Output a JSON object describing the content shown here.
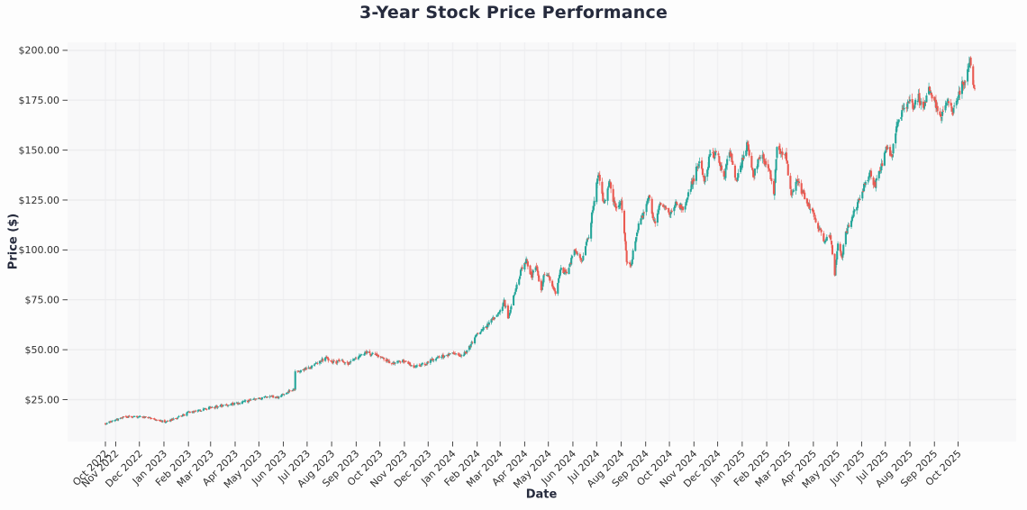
{
  "figure": {
    "title": "3-Year Stock Price Performance"
  },
  "chart_data": {
    "type": "candlestick",
    "title": "3-Year Stock Price Performance",
    "xlabel": "Date",
    "ylabel": "Price ($)",
    "x_start": "2022-10-19",
    "x_end": "2025-10-22",
    "ylim": [
      4,
      204
    ],
    "grid": true,
    "y_ticks": [
      25,
      50,
      75,
      100,
      125,
      150,
      175,
      200
    ],
    "y_tick_labels": [
      "$25.00",
      "$50.00",
      "$75.00",
      "$100.00",
      "$125.00",
      "$150.00",
      "$175.00",
      "$200.00"
    ],
    "x_ticks": [
      {
        "label": "Oct 2022",
        "date": "2022-10-19"
      },
      {
        "label": "Nov 2022",
        "date": "2022-11-01"
      },
      {
        "label": "Dec 2022",
        "date": "2022-12-01"
      },
      {
        "label": "Jan 2023",
        "date": "2023-01-01"
      },
      {
        "label": "Feb 2023",
        "date": "2023-02-01"
      },
      {
        "label": "Mar 2023",
        "date": "2023-03-01"
      },
      {
        "label": "Apr 2023",
        "date": "2023-04-01"
      },
      {
        "label": "May 2023",
        "date": "2023-05-01"
      },
      {
        "label": "Jun 2023",
        "date": "2023-06-01"
      },
      {
        "label": "Jul 2023",
        "date": "2023-07-01"
      },
      {
        "label": "Aug 2023",
        "date": "2023-08-01"
      },
      {
        "label": "Sep 2023",
        "date": "2023-09-01"
      },
      {
        "label": "Oct 2023",
        "date": "2023-10-01"
      },
      {
        "label": "Nov 2023",
        "date": "2023-11-01"
      },
      {
        "label": "Dec 2023",
        "date": "2023-12-01"
      },
      {
        "label": "Jan 2024",
        "date": "2024-01-01"
      },
      {
        "label": "Feb 2024",
        "date": "2024-02-01"
      },
      {
        "label": "Mar 2024",
        "date": "2024-03-01"
      },
      {
        "label": "Apr 2024",
        "date": "2024-04-01"
      },
      {
        "label": "May 2024",
        "date": "2024-05-01"
      },
      {
        "label": "Jun 2024",
        "date": "2024-06-01"
      },
      {
        "label": "Jul 2024",
        "date": "2024-07-01"
      },
      {
        "label": "Aug 2024",
        "date": "2024-08-01"
      },
      {
        "label": "Sep 2024",
        "date": "2024-09-01"
      },
      {
        "label": "Oct 2024",
        "date": "2024-10-01"
      },
      {
        "label": "Nov 2024",
        "date": "2024-11-01"
      },
      {
        "label": "Dec 2024",
        "date": "2024-12-01"
      },
      {
        "label": "Jan 2025",
        "date": "2025-01-01"
      },
      {
        "label": "Feb 2025",
        "date": "2025-02-01"
      },
      {
        "label": "Mar 2025",
        "date": "2025-03-01"
      },
      {
        "label": "Apr 2025",
        "date": "2025-04-01"
      },
      {
        "label": "May 2025",
        "date": "2025-05-01"
      },
      {
        "label": "Jun 2025",
        "date": "2025-06-01"
      },
      {
        "label": "Jul 2025",
        "date": "2025-07-01"
      },
      {
        "label": "Aug 2025",
        "date": "2025-08-01"
      },
      {
        "label": "Sep 2025",
        "date": "2025-09-01"
      },
      {
        "label": "Oct 2025",
        "date": "2025-10-01"
      }
    ],
    "colors": {
      "up": "#26a69a",
      "down": "#ea5a52",
      "grid_h": "#ececee",
      "grid_v": "#f0f0f2",
      "plot_bg": "#f8f8f9",
      "tick_text": "#2e2e2e",
      "title_text": "#262b3d",
      "tick_mark": "#333333"
    },
    "anchors": [
      [
        "2022-10-19",
        13.2
      ],
      [
        "2022-10-26",
        13.8
      ],
      [
        "2022-11-03",
        15.0
      ],
      [
        "2022-11-12",
        16.5
      ],
      [
        "2022-11-21",
        16.2
      ],
      [
        "2022-12-01",
        16.4
      ],
      [
        "2022-12-12",
        16.0
      ],
      [
        "2022-12-22",
        14.8
      ],
      [
        "2023-01-04",
        13.9
      ],
      [
        "2023-01-16",
        15.5
      ],
      [
        "2023-02-01",
        18.5
      ],
      [
        "2023-02-15",
        19.5
      ],
      [
        "2023-03-01",
        21.0
      ],
      [
        "2023-03-20",
        22.3
      ],
      [
        "2023-04-03",
        23.2
      ],
      [
        "2023-04-17",
        24.4
      ],
      [
        "2023-05-01",
        25.5
      ],
      [
        "2023-05-16",
        26.8
      ],
      [
        "2023-05-24",
        26.0
      ],
      [
        "2023-06-01",
        28.0
      ],
      [
        "2023-06-15",
        30.2
      ],
      [
        "2023-06-16",
        38.8
      ],
      [
        "2023-06-26",
        40.0
      ],
      [
        "2023-07-05",
        41.5
      ],
      [
        "2023-07-14",
        43.5
      ],
      [
        "2023-07-25",
        46.0
      ],
      [
        "2023-08-04",
        43.5
      ],
      [
        "2023-08-14",
        44.5
      ],
      [
        "2023-08-22",
        43.0
      ],
      [
        "2023-09-01",
        45.5
      ],
      [
        "2023-09-14",
        48.8
      ],
      [
        "2023-09-22",
        47.5
      ],
      [
        "2023-10-02",
        46.5
      ],
      [
        "2023-10-16",
        43.0
      ],
      [
        "2023-10-25",
        44.0
      ],
      [
        "2023-11-02",
        44.5
      ],
      [
        "2023-11-14",
        41.5
      ],
      [
        "2023-11-24",
        42.5
      ],
      [
        "2023-12-05",
        44.5
      ],
      [
        "2023-12-18",
        46.5
      ],
      [
        "2024-01-02",
        47.8
      ],
      [
        "2024-01-10",
        46.2
      ],
      [
        "2024-01-19",
        49.0
      ],
      [
        "2024-02-01",
        58.0
      ],
      [
        "2024-02-14",
        62.0
      ],
      [
        "2024-03-01",
        70.0
      ],
      [
        "2024-03-06",
        74.0
      ],
      [
        "2024-03-11",
        66.5
      ],
      [
        "2024-03-26",
        88.0
      ],
      [
        "2024-04-03",
        95.0
      ],
      [
        "2024-04-10",
        86.5
      ],
      [
        "2024-04-15",
        92.0
      ],
      [
        "2024-04-22",
        80.0
      ],
      [
        "2024-04-26",
        88.5
      ],
      [
        "2024-05-02",
        86.0
      ],
      [
        "2024-05-10",
        79.0
      ],
      [
        "2024-05-17",
        91.0
      ],
      [
        "2024-05-23",
        88.0
      ],
      [
        "2024-06-03",
        99.0
      ],
      [
        "2024-06-12",
        94.0
      ],
      [
        "2024-06-21",
        107.0
      ],
      [
        "2024-06-28",
        126.0
      ],
      [
        "2024-07-03",
        139.0
      ],
      [
        "2024-07-10",
        122.5
      ],
      [
        "2024-07-17",
        134.0
      ],
      [
        "2024-07-25",
        120.0
      ],
      [
        "2024-08-01",
        124.5
      ],
      [
        "2024-08-08",
        95.0
      ],
      [
        "2024-08-13",
        92.0
      ],
      [
        "2024-08-21",
        110.0
      ],
      [
        "2024-08-29",
        118.0
      ],
      [
        "2024-09-05",
        127.0
      ],
      [
        "2024-09-12",
        113.5
      ],
      [
        "2024-09-20",
        124.0
      ],
      [
        "2024-10-01",
        116.5
      ],
      [
        "2024-10-10",
        124.0
      ],
      [
        "2024-10-18",
        120.0
      ],
      [
        "2024-11-01",
        136.0
      ],
      [
        "2024-11-08",
        145.5
      ],
      [
        "2024-11-14",
        134.5
      ],
      [
        "2024-11-22",
        148.5
      ],
      [
        "2024-12-02",
        147.0
      ],
      [
        "2024-12-09",
        135.0
      ],
      [
        "2024-12-16",
        150.5
      ],
      [
        "2024-12-24",
        134.5
      ],
      [
        "2025-01-08",
        153.5
      ],
      [
        "2025-01-15",
        136.5
      ],
      [
        "2025-01-24",
        147.5
      ],
      [
        "2025-02-03",
        142.0
      ],
      [
        "2025-02-10",
        127.5
      ],
      [
        "2025-02-14",
        150.0
      ],
      [
        "2025-02-25",
        148.0
      ],
      [
        "2025-03-04",
        126.0
      ],
      [
        "2025-03-12",
        135.0
      ],
      [
        "2025-03-20",
        127.0
      ],
      [
        "2025-04-01",
        118.0
      ],
      [
        "2025-04-09",
        110.0
      ],
      [
        "2025-04-15",
        104.0
      ],
      [
        "2025-04-22",
        108.0
      ],
      [
        "2025-04-28",
        88.0
      ],
      [
        "2025-05-02",
        103.0
      ],
      [
        "2025-05-07",
        97.0
      ],
      [
        "2025-05-13",
        110.0
      ],
      [
        "2025-05-20",
        117.0
      ],
      [
        "2025-05-28",
        124.0
      ],
      [
        "2025-06-05",
        133.0
      ],
      [
        "2025-06-12",
        138.0
      ],
      [
        "2025-06-18",
        132.0
      ],
      [
        "2025-06-26",
        142.0
      ],
      [
        "2025-07-02",
        151.0
      ],
      [
        "2025-07-09",
        147.0
      ],
      [
        "2025-07-16",
        164.0
      ],
      [
        "2025-07-24",
        170.0
      ],
      [
        "2025-07-31",
        175.0
      ],
      [
        "2025-08-06",
        172.0
      ],
      [
        "2025-08-12",
        177.0
      ],
      [
        "2025-08-18",
        170.0
      ],
      [
        "2025-08-26",
        181.0
      ],
      [
        "2025-09-03",
        173.0
      ],
      [
        "2025-09-10",
        166.0
      ],
      [
        "2025-09-17",
        174.0
      ],
      [
        "2025-09-24",
        169.0
      ],
      [
        "2025-10-01",
        178.0
      ],
      [
        "2025-10-08",
        184.0
      ],
      [
        "2025-10-14",
        191.0
      ],
      [
        "2025-10-16",
        194.5
      ],
      [
        "2025-10-20",
        184.0
      ],
      [
        "2025-10-22",
        182.0
      ]
    ]
  }
}
